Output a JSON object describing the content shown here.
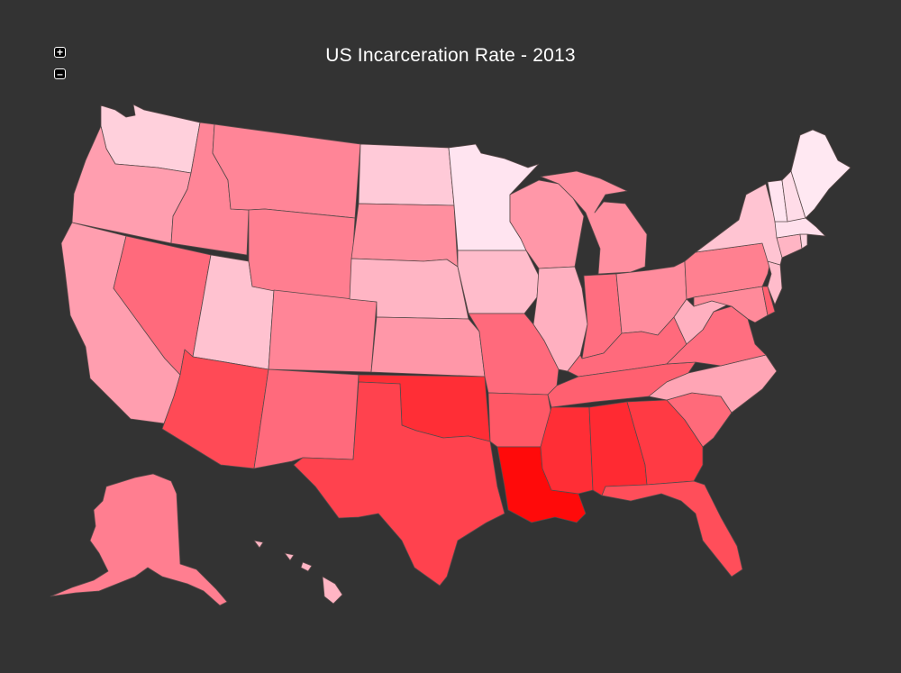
{
  "map": {
    "title": "US Incarceration Rate - 2013",
    "zoom_in_label": "+",
    "zoom_out_label": "–",
    "background": "#333333",
    "state_border_color": "#5a4a4a",
    "fills": {
      "WA": "#ffd0dc",
      "OR": "#ff9eaf",
      "CA": "#ff9eaf",
      "ID": "#ff8597",
      "NV": "#ff6a7c",
      "UT": "#ffc2d0",
      "AZ": "#ff4a56",
      "MT": "#ff8597",
      "WY": "#ff7e90",
      "CO": "#ff8597",
      "NM": "#ff6a7c",
      "ND": "#ffcad8",
      "SD": "#ff8f9f",
      "NE": "#ffb5c4",
      "KS": "#ff97a8",
      "OK": "#ff2e36",
      "TX": "#ff424e",
      "MN": "#ffe4f0",
      "IA": "#ffbccb",
      "MO": "#ff6a7c",
      "AR": "#ff5866",
      "LA": "#ff0a0a",
      "WI": "#ff97a8",
      "IL": "#ffb0c0",
      "MI": "#ff8fa0",
      "IN": "#ff6e80",
      "OH": "#ff8c9d",
      "KY": "#ff6a7c",
      "TN": "#ff6070",
      "MS": "#ff2e36",
      "AL": "#ff2a32",
      "GA": "#ff3a44",
      "FL": "#ff4e5a",
      "SC": "#ff6a7a",
      "NC": "#ffa5b5",
      "VA": "#ff6e80",
      "WV": "#ffb0c0",
      "PA": "#ff8090",
      "NY": "#ffc4d2",
      "VT": "#ffe4f0",
      "NH": "#ffdce8",
      "ME": "#ffe8f2",
      "MA": "#ffe0ec",
      "RI": "#ffd4e0",
      "CT": "#ffb5c4",
      "NJ": "#ffbccb",
      "DE": "#ff6070",
      "MD": "#ff8a9a",
      "AK": "#ff7e90",
      "HI": "#ffb5c4"
    }
  }
}
